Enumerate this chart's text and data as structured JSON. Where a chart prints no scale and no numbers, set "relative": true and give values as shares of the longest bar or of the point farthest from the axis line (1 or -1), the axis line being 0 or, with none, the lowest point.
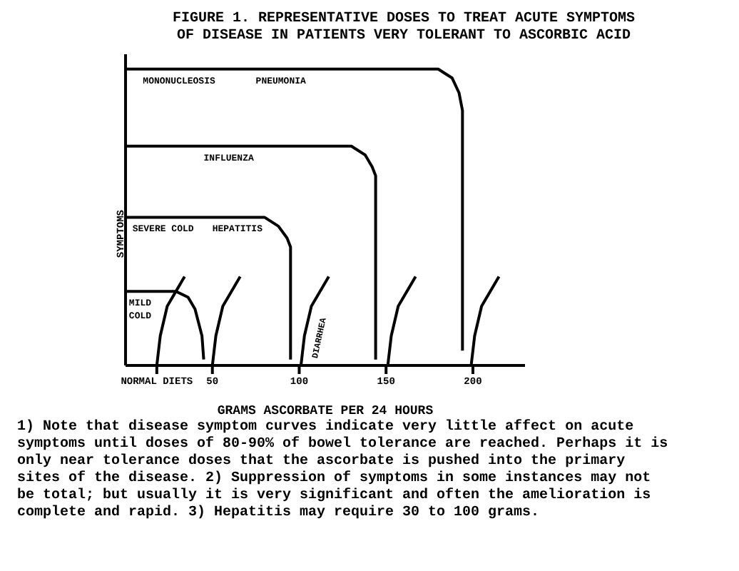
{
  "chart_data": {
    "type": "line",
    "title": "FIGURE 1. REPRESENTATIVE DOSES TO TREAT ACUTE SYMPTOMS OF DISEASE IN PATIENTS VERY TOLERANT TO ASCORBIC ACID",
    "xlabel": "GRAMS ASCORBATE PER 24 HOURS",
    "ylabel": "SYMPTOMS",
    "relative": true,
    "xlim": [
      0,
      230
    ],
    "xticks": [
      {
        "value": 18,
        "label": "NORMAL DIETS"
      },
      50,
      100,
      150,
      200
    ],
    "grid": false,
    "legend": false,
    "marker": "none",
    "line_style": "solid",
    "series": [
      {
        "color": "#000000",
        "x": [
          0,
          180,
          188,
          192,
          194,
          194
        ],
        "values": [
          1,
          1,
          0.97,
          0.92,
          0.86,
          0.05
        ]
      },
      {
        "color": "#000000",
        "x": [
          0,
          130,
          138,
          142,
          144,
          144
        ],
        "values": [
          0.74,
          0.74,
          0.71,
          0.67,
          0.64,
          0.02
        ]
      },
      {
        "color": "#000000",
        "x": [
          0,
          80,
          88,
          93,
          95,
          95
        ],
        "values": [
          0.5,
          0.5,
          0.47,
          0.43,
          0.4,
          0.02
        ]
      },
      {
        "color": "#000000",
        "x": [
          0,
          29,
          36,
          40,
          44,
          45
        ],
        "values": [
          0.25,
          0.25,
          0.23,
          0.19,
          0.1,
          0.02
        ]
      },
      {
        "color": "#000000",
        "x": [
          18,
          20,
          24,
          34
        ],
        "values": [
          0,
          0.1,
          0.2,
          0.3
        ]
      },
      {
        "color": "#000000",
        "x": [
          50,
          52,
          56,
          66
        ],
        "values": [
          0,
          0.1,
          0.2,
          0.3
        ]
      },
      {
        "color": "#000000",
        "x": [
          101,
          103,
          107,
          117
        ],
        "values": [
          0,
          0.1,
          0.2,
          0.3
        ]
      },
      {
        "color": "#000000",
        "x": [
          151,
          153,
          157,
          167
        ],
        "values": [
          0,
          0.1,
          0.2,
          0.3
        ]
      },
      {
        "color": "#000000",
        "x": [
          199,
          201,
          205,
          215
        ],
        "values": [
          0,
          0.1,
          0.2,
          0.3
        ]
      }
    ],
    "annotations": [
      {
        "text": "MONONUCLEOSIS",
        "x": 10,
        "y": 1
      },
      {
        "text": "PNEUMONIA",
        "x": 75,
        "y": 1
      },
      {
        "text": "INFLUENZA",
        "x": 45,
        "y": 0.74
      },
      {
        "text": "SEVERE COLD",
        "x": 4,
        "y": 0.5
      },
      {
        "text": "HEPATITIS",
        "x": 50,
        "y": 0.5
      },
      {
        "text": "MILD COLD",
        "x": 2,
        "y": 0.25
      },
      {
        "text": "DIARRHEA",
        "x": 103,
        "y": 0.1
      },
      "1) Note that disease symptom curves indicate very little affect on acute symptoms until doses of 80-90% of bowel tolerance are reached. Perhaps it is only near tolerance doses that the ascorbate is pushed into the primary sites of the disease. 2) Suppression of symptoms in some instances may not be total; but usually it is very significant and often the amelioration is complete and rapid. 3) Hepatitis may require 30 to 100 grams."
    ]
  }
}
